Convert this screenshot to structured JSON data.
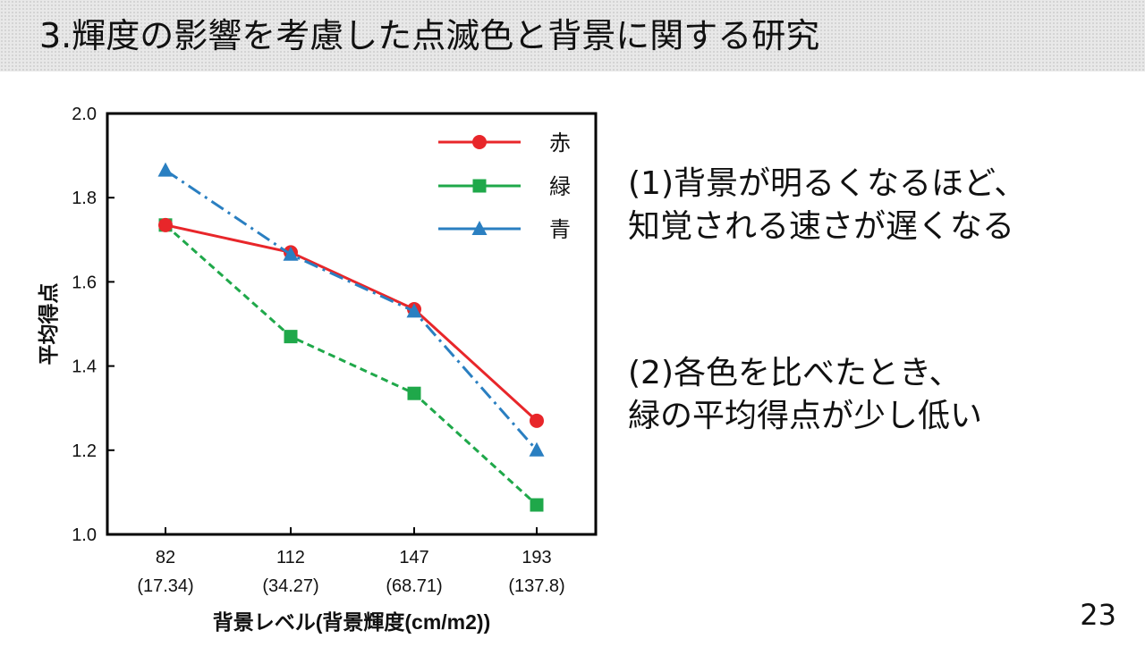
{
  "slide": {
    "title": "3.輝度の影響を考慮した点滅色と背景に関する研究",
    "page_number": "23",
    "points": [
      {
        "lines": [
          "(1)背景が明るくなるほど、",
          "知覚される速さが遅くなる"
        ]
      },
      {
        "lines": [
          "(2)各色を比べたとき、",
          "緑の平均得点が少し低い"
        ]
      }
    ]
  },
  "chart_data": {
    "type": "line",
    "categories": [
      "82",
      "112",
      "147",
      "193"
    ],
    "category_sublabels": [
      "(17.34)",
      "(34.27)",
      "(68.71)",
      "(137.8)"
    ],
    "xlabel": "背景レベル(背景輝度(cm/m2))",
    "ylabel": "平均得点",
    "ylim": [
      1.0,
      2.0
    ],
    "yticks": [
      "1.0",
      "1.2",
      "1.4",
      "1.6",
      "1.8",
      "2.0"
    ],
    "legend_position": "top-right",
    "series": [
      {
        "name": "赤",
        "values": [
          1.735,
          1.67,
          1.535,
          1.27
        ],
        "color": "#e8262a",
        "marker": "circle",
        "line": "solid"
      },
      {
        "name": "緑",
        "values": [
          1.735,
          1.47,
          1.335,
          1.07
        ],
        "color": "#1fa84a",
        "marker": "square",
        "line": "dashed"
      },
      {
        "name": "青",
        "values": [
          1.865,
          1.665,
          1.53,
          1.2
        ],
        "color": "#2a7fc1",
        "marker": "triangle",
        "line": "dashdot"
      }
    ]
  }
}
